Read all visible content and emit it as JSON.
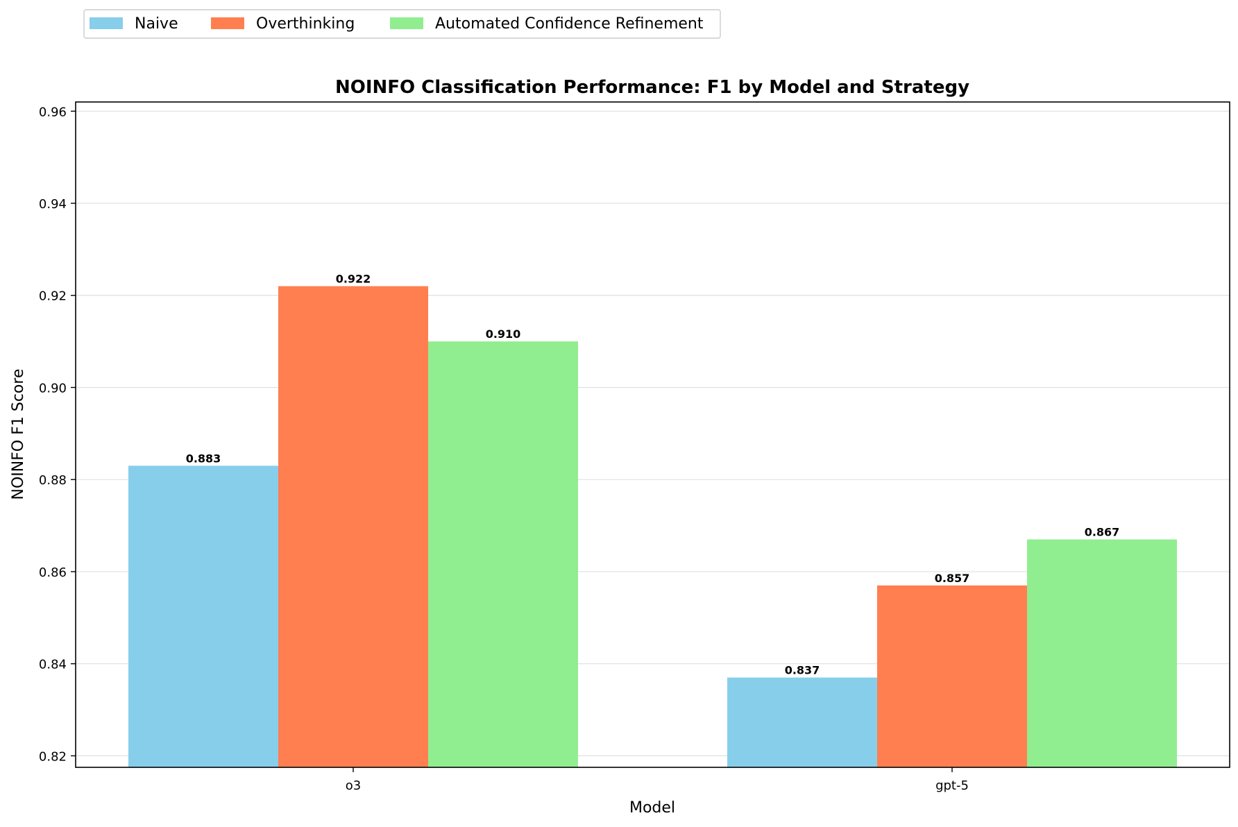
{
  "chart_data": {
    "type": "bar",
    "title": "NOINFO Classification Performance: F1 by Model and Strategy",
    "xlabel": "Model",
    "ylabel": "NOINFO F1 Score",
    "categories": [
      "o3",
      "gpt-5"
    ],
    "series": [
      {
        "name": "Naive",
        "color": "#87CEEB",
        "values": [
          0.883,
          0.837
        ]
      },
      {
        "name": "Overthinking",
        "color": "#FF7F50",
        "values": [
          0.922,
          0.857
        ]
      },
      {
        "name": "Automated Confidence Refinement",
        "color": "#90EE90",
        "values": [
          0.91,
          0.867
        ]
      }
    ],
    "data_labels": [
      [
        "0.883",
        "0.837"
      ],
      [
        "0.922",
        "0.857"
      ],
      [
        "0.910",
        "0.867"
      ]
    ],
    "ylim": [
      0.8175,
      0.962
    ],
    "yticks": [
      0.82,
      0.84,
      0.86,
      0.88,
      0.9,
      0.92,
      0.94,
      0.96
    ],
    "ytick_labels": [
      "0.82",
      "0.84",
      "0.86",
      "0.88",
      "0.90",
      "0.92",
      "0.94",
      "0.96"
    ],
    "grid": "y",
    "legend_position": "top-left, above plot"
  }
}
